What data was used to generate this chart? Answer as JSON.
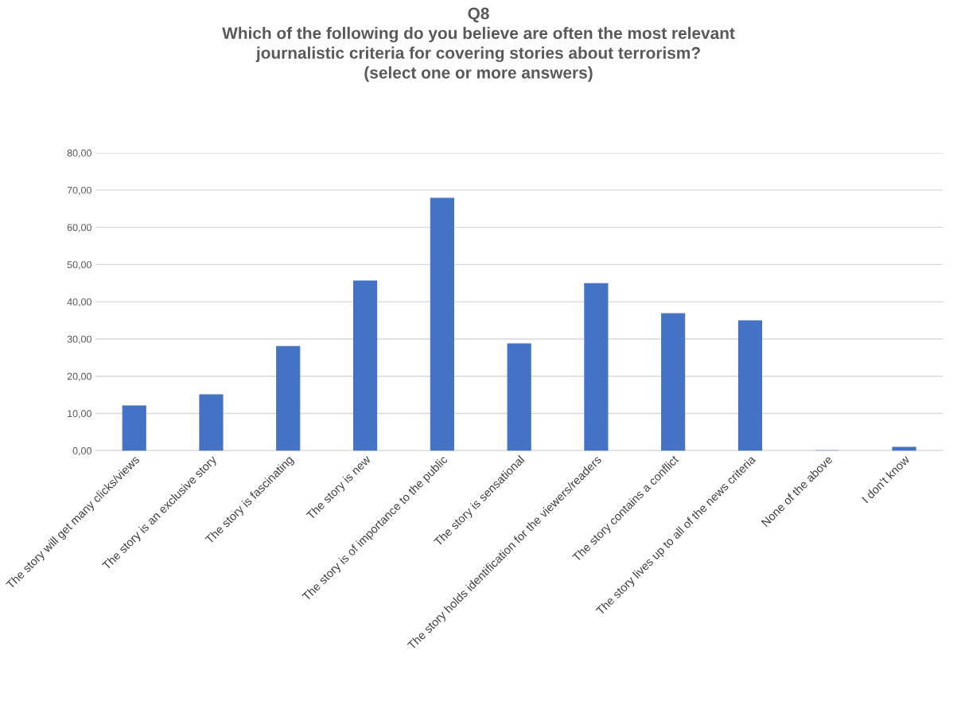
{
  "chart_data": {
    "type": "bar",
    "title": "Q8\nWhich of the following do you believe are often the most relevant\njournalistic criteria for covering stories about terrorism?\n(select one or more answers)",
    "categories": [
      "The story will get many clicks/views",
      "The story is an exclusive story",
      "The story is fascinating",
      "The story is new",
      "The story is of importance to the public",
      "The story is sensational",
      "The story holds identification for the viewers/readers",
      "The story contains a conflict",
      "The story lives up to all of the news criteria",
      "None of the above",
      "I don't know"
    ],
    "values": [
      12,
      15,
      28,
      45.6,
      67.8,
      28.7,
      44.9,
      36.8,
      34.9,
      0,
      0.9
    ],
    "color": "#4472c4",
    "ylim": [
      0,
      80
    ],
    "yticks": [
      {
        "value": 0,
        "label": "0,00"
      },
      {
        "value": 10,
        "label": "10,00"
      },
      {
        "value": 20,
        "label": "20,00"
      },
      {
        "value": 30,
        "label": "30,00"
      },
      {
        "value": 40,
        "label": "40,00"
      },
      {
        "value": 50,
        "label": "50,00"
      },
      {
        "value": 60,
        "label": "60,00"
      },
      {
        "value": 70,
        "label": "70,00"
      },
      {
        "value": 80,
        "label": "80,00"
      }
    ],
    "grid": "y"
  }
}
